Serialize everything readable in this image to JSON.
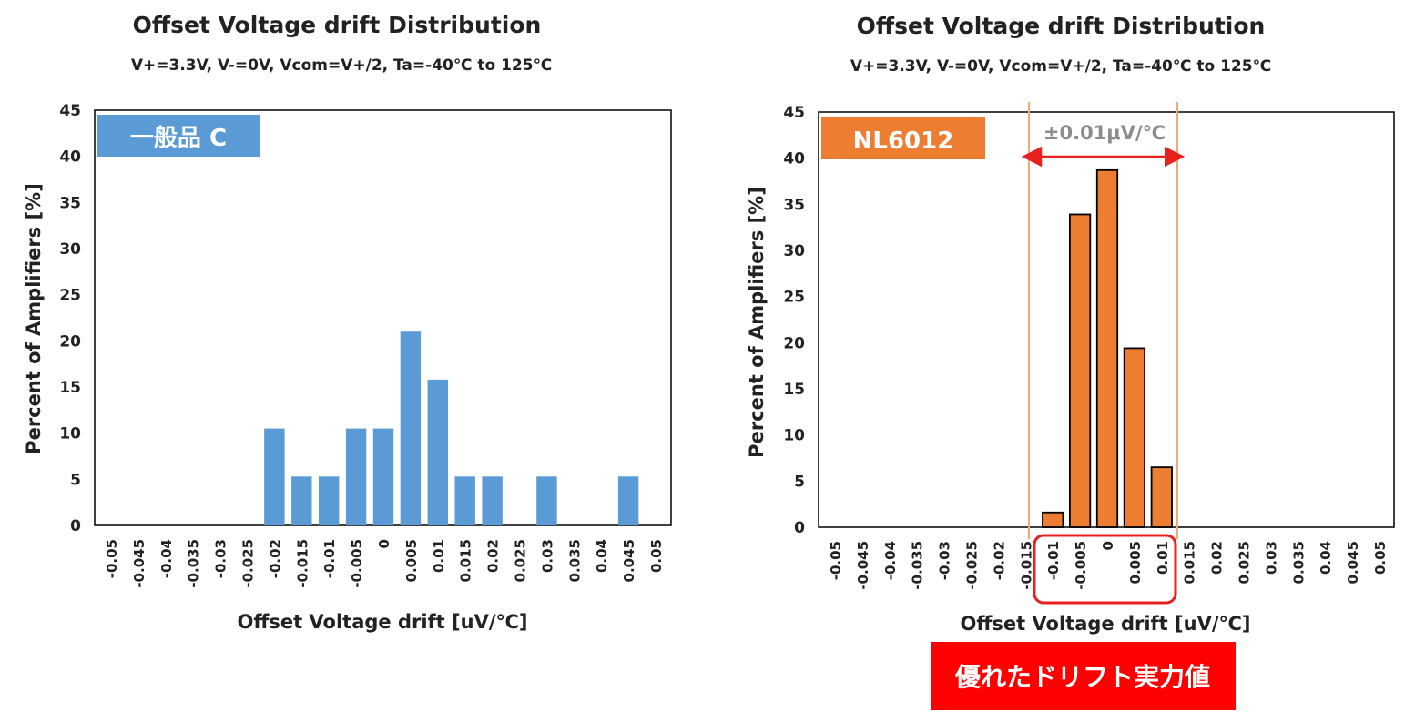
{
  "chart_data": [
    {
      "type": "bar",
      "title": "Offset Voltage drift Distribution",
      "subtitle": "V+=3.3V, V-=0V, Vcom=V+/2, Ta=-40℃ to 125℃",
      "xlabel": "Offset Voltage drift [uV/℃]",
      "ylabel": "Percent of Amplifiers [%]",
      "ylim": [
        0,
        45
      ],
      "yticks": [
        "0",
        "5",
        "10",
        "15",
        "20",
        "25",
        "30",
        "35",
        "40",
        "45"
      ],
      "categories": [
        "-0.05",
        "-0.045",
        "-0.04",
        "-0.035",
        "-0.03",
        "-0.025",
        "-0.02",
        "-0.015",
        "-0.01",
        "-0.005",
        "0",
        "0.005",
        "0.01",
        "0.015",
        "0.02",
        "0.025",
        "0.03",
        "0.035",
        "0.04",
        "0.045",
        "0.05"
      ],
      "values": [
        0,
        0,
        0,
        0,
        0,
        0,
        10.5,
        5.3,
        5.3,
        10.5,
        10.5,
        21,
        15.8,
        5.3,
        5.3,
        0,
        5.3,
        0,
        0,
        5.3,
        0
      ],
      "bar_color": "#5b9bd5",
      "label": "一般品 C",
      "grid": false
    },
    {
      "type": "bar",
      "title": "Offset Voltage drift Distribution",
      "subtitle": "V+=3.3V, V-=0V, Vcom=V+/2, Ta=-40℃ to 125℃",
      "xlabel": "Offset Voltage drift [uV/℃]",
      "ylabel": "Percent of Amplifiers [%]",
      "ylim": [
        0,
        45
      ],
      "yticks": [
        "0",
        "5",
        "10",
        "15",
        "20",
        "25",
        "30",
        "35",
        "40",
        "45"
      ],
      "categories": [
        "-0.05",
        "-0.045",
        "-0.04",
        "-0.035",
        "-0.03",
        "-0.025",
        "-0.02",
        "-0.015",
        "-0.01",
        "-0.005",
        "0",
        "0.005",
        "0.01",
        "0.015",
        "0.02",
        "0.025",
        "0.03",
        "0.035",
        "0.04",
        "0.045",
        "0.05"
      ],
      "values": [
        0,
        0,
        0,
        0,
        0,
        0,
        0,
        0,
        1.6,
        33.9,
        38.7,
        19.4,
        6.5,
        0,
        0,
        0,
        0,
        0,
        0,
        0,
        0
      ],
      "bar_color": "#ed7d31",
      "label": "NL6012",
      "range_annotation": "±0.01μV/℃",
      "callout": "優れたドリフト実力値",
      "grid": false
    }
  ]
}
